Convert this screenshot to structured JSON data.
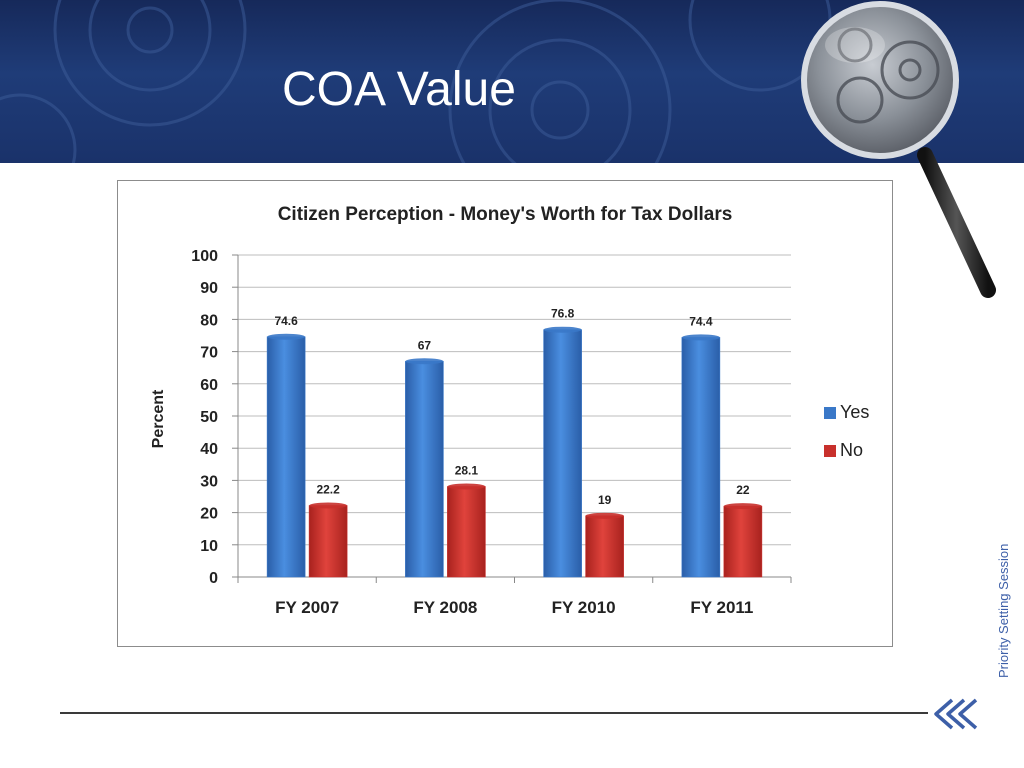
{
  "slide": {
    "title": "COA Value",
    "side_label": "Priority Setting Session"
  },
  "colors": {
    "yes": "#3a78c8",
    "no": "#c8302c",
    "banner": "#1f3c78",
    "side_text": "#3d5fa8"
  },
  "chart_data": {
    "type": "bar",
    "title": "Citizen Perception - Money's Worth for Tax Dollars",
    "ylabel": "Percent",
    "xlabel": "",
    "ylim": [
      0,
      100
    ],
    "yticks": [
      "0",
      "10",
      "20",
      "30",
      "40",
      "50",
      "60",
      "70",
      "80",
      "90",
      "100"
    ],
    "categories": [
      "FY 2007",
      "FY 2008",
      "FY 2010",
      "FY 2011"
    ],
    "series": [
      {
        "name": "Yes",
        "values": [
          74.6,
          67,
          76.8,
          74.4
        ],
        "labels": [
          "74.6",
          "67",
          "76.8",
          "74.4"
        ]
      },
      {
        "name": "No",
        "values": [
          22.2,
          28.1,
          19,
          22
        ],
        "labels": [
          "22.2",
          "28.1",
          "19",
          "22"
        ]
      }
    ],
    "grid": true,
    "legend": "right"
  }
}
